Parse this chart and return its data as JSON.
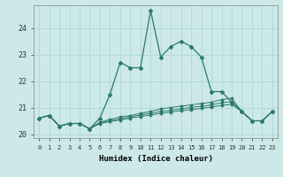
{
  "xlabel": "Humidex (Indice chaleur)",
  "x": [
    0,
    1,
    2,
    3,
    4,
    5,
    6,
    7,
    8,
    9,
    10,
    11,
    12,
    13,
    14,
    15,
    16,
    17,
    18,
    19,
    20,
    21,
    22,
    23
  ],
  "line1": [
    20.6,
    20.7,
    20.3,
    20.4,
    20.4,
    20.2,
    20.6,
    21.5,
    22.7,
    22.5,
    22.5,
    24.65,
    22.9,
    23.3,
    23.5,
    23.3,
    22.9,
    21.6,
    21.6,
    21.2,
    20.85,
    20.5,
    20.5,
    20.85
  ],
  "line2": [
    20.6,
    20.7,
    20.3,
    20.4,
    20.4,
    20.2,
    20.45,
    20.55,
    20.65,
    20.7,
    20.78,
    20.85,
    20.95,
    21.0,
    21.05,
    21.1,
    21.15,
    21.2,
    21.3,
    21.35,
    20.85,
    20.5,
    20.5,
    20.85
  ],
  "line3": [
    20.6,
    20.7,
    20.3,
    20.4,
    20.4,
    20.2,
    20.42,
    20.5,
    20.58,
    20.65,
    20.72,
    20.78,
    20.85,
    20.9,
    20.95,
    21.0,
    21.05,
    21.1,
    21.18,
    21.22,
    20.85,
    20.5,
    20.5,
    20.85
  ],
  "line4": [
    20.6,
    20.7,
    20.3,
    20.4,
    20.4,
    20.2,
    20.4,
    20.47,
    20.53,
    20.6,
    20.66,
    20.72,
    20.78,
    20.83,
    20.88,
    20.92,
    20.97,
    21.02,
    21.08,
    21.12,
    20.85,
    20.5,
    20.5,
    20.85
  ],
  "line_color": "#2d7a6a",
  "bg_color": "#cce8e8",
  "grid_color": "#b0d8d8",
  "ylim": [
    19.85,
    24.85
  ],
  "yticks": [
    20,
    21,
    22,
    23,
    24
  ],
  "xticks": [
    0,
    1,
    2,
    3,
    4,
    5,
    6,
    7,
    8,
    9,
    10,
    11,
    12,
    13,
    14,
    15,
    16,
    17,
    18,
    19,
    20,
    21,
    22,
    23
  ]
}
